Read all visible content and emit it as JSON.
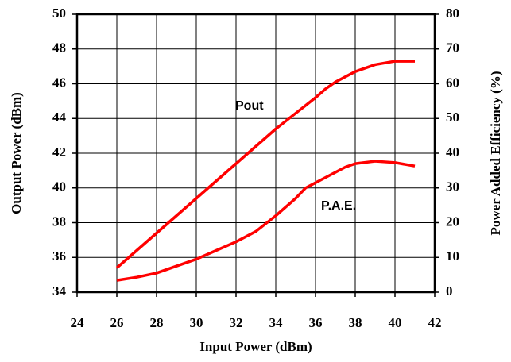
{
  "chart_data": {
    "type": "line",
    "x_label": "Input Power (dBm)",
    "y_label": "Output Power (dBm)",
    "y2_label": "Power Added Efficiency (%)",
    "annotations": [
      "Pout",
      "P.A.E."
    ],
    "xlim": [
      24,
      42
    ],
    "xticks": [
      24,
      26,
      28,
      30,
      32,
      34,
      36,
      38,
      40,
      42
    ],
    "ylim": [
      34,
      50
    ],
    "yticks": [
      34,
      36,
      38,
      40,
      42,
      44,
      46,
      48,
      50
    ],
    "y2lim": [
      0,
      80
    ],
    "y2ticks": [
      0,
      10,
      20,
      30,
      40,
      50,
      60,
      70,
      80
    ],
    "grid": true,
    "series": [
      {
        "name": "Pout",
        "color": "#ff0000",
        "x": [
          26,
          27,
          28,
          29,
          30,
          31,
          32,
          33,
          34,
          35,
          36,
          36.5,
          37,
          38,
          39,
          40,
          41
        ],
        "values": [
          35.4,
          36.4,
          37.4,
          38.4,
          39.4,
          40.4,
          41.4,
          42.4,
          43.4,
          44.3,
          45.2,
          45.7,
          46.1,
          46.7,
          47.1,
          47.3,
          47.3
        ]
      },
      {
        "name": "P.A.E.",
        "color": "#ff0000",
        "axis": "y2",
        "x": [
          26,
          27,
          28,
          29,
          30,
          31,
          32,
          33,
          34,
          35,
          35.5,
          36,
          36.5,
          37,
          37.5,
          38,
          39,
          40,
          41
        ],
        "values": [
          3.4,
          4.3,
          5.5,
          7.5,
          9.5,
          12,
          14.5,
          17.5,
          22,
          27,
          30,
          31.5,
          33,
          34.5,
          36,
          37,
          37.7,
          37.3,
          36.3
        ]
      }
    ]
  }
}
